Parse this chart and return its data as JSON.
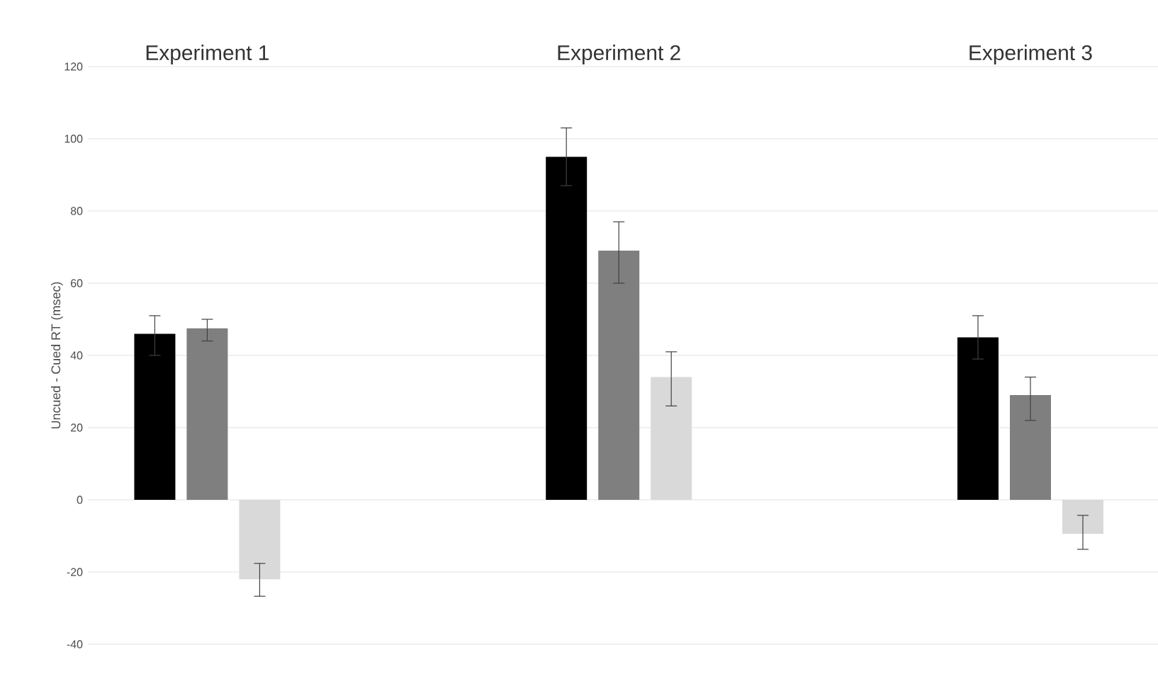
{
  "chart_data": {
    "type": "bar",
    "ylabel": "Uncued - Cued RT (msec)",
    "categories": [
      "Experiment 1",
      "Experiment 2",
      "Experiment 3"
    ],
    "series": [
      {
        "color": "#000000",
        "values": [
          46,
          95,
          45
        ],
        "errors": [
          [
            40,
            51
          ],
          [
            87,
            103
          ],
          [
            39,
            51
          ]
        ]
      },
      {
        "color": "#7f7f7f",
        "values": [
          47.5,
          69,
          29
        ],
        "errors": [
          [
            44,
            50
          ],
          [
            60,
            77
          ],
          [
            22,
            34
          ]
        ]
      },
      {
        "color": "#d9d9d9",
        "values": [
          -22,
          34,
          -9.4
        ],
        "errors": [
          [
            -26.7,
            -17.6
          ],
          [
            26,
            41
          ],
          [
            -13.7,
            -4.3
          ]
        ]
      }
    ],
    "ylim": [
      -40,
      120
    ],
    "yticks": [
      -40,
      -20,
      0,
      20,
      40,
      60,
      80,
      100,
      120
    ],
    "grid": "y"
  }
}
